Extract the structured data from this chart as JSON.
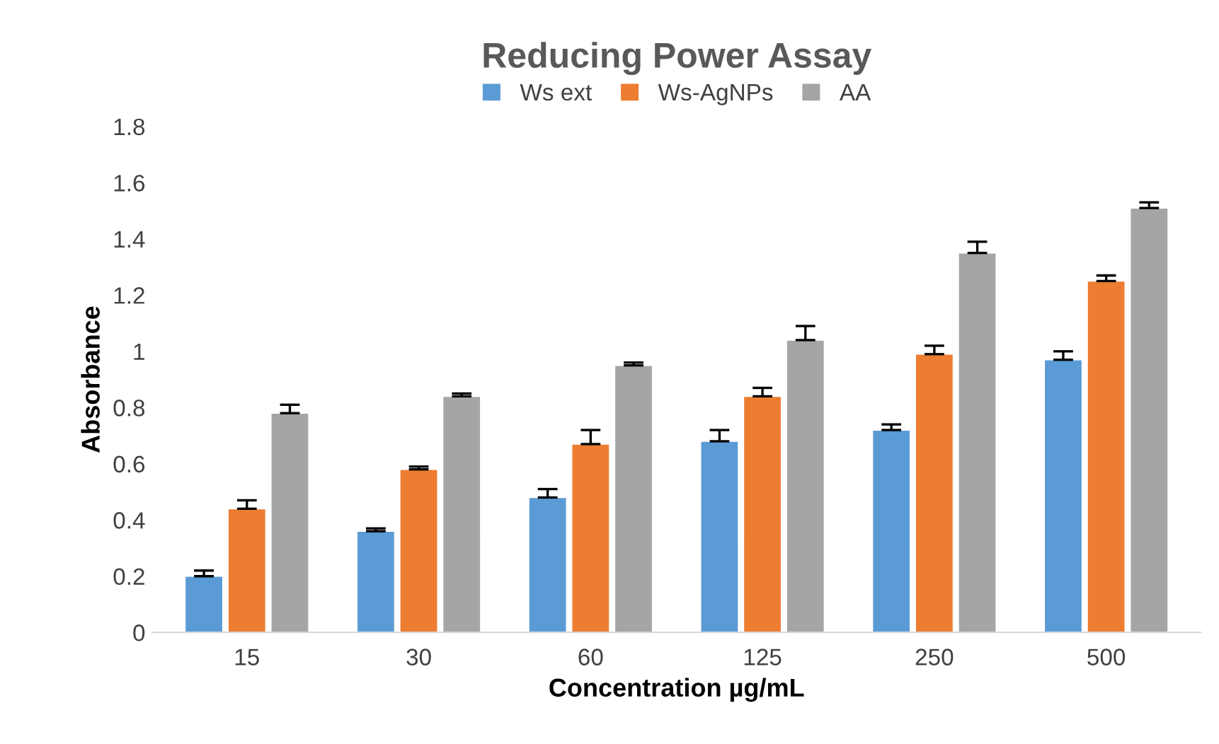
{
  "chart_data": {
    "type": "bar",
    "title": "Reducing Power Assay",
    "xlabel": "Concentration µg/mL",
    "ylabel": "Absorbance",
    "categories": [
      "15",
      "30",
      "60",
      "125",
      "250",
      "500"
    ],
    "series": [
      {
        "name": "Ws ext",
        "color": "#5b9bd5",
        "values": [
          0.2,
          0.36,
          0.48,
          0.68,
          0.72,
          0.97
        ],
        "errors": [
          [
            0.2,
            0.22
          ],
          [
            0.36,
            0.37
          ],
          [
            0.48,
            0.51
          ],
          [
            0.68,
            0.72
          ],
          [
            0.72,
            0.74
          ],
          [
            0.97,
            1.0
          ]
        ]
      },
      {
        "name": "Ws-AgNPs",
        "color": "#ed7d31",
        "values": [
          0.44,
          0.58,
          0.67,
          0.84,
          0.99,
          1.25
        ],
        "errors": [
          [
            0.44,
            0.47
          ],
          [
            0.58,
            0.59
          ],
          [
            0.67,
            0.72
          ],
          [
            0.84,
            0.87
          ],
          [
            0.99,
            1.02
          ],
          [
            1.25,
            1.27
          ]
        ]
      },
      {
        "name": "AA",
        "color": "#a5a5a5",
        "values": [
          0.78,
          0.84,
          0.95,
          1.04,
          1.35,
          1.51
        ],
        "errors": [
          [
            0.78,
            0.81
          ],
          [
            0.84,
            0.85
          ],
          [
            0.95,
            0.96
          ],
          [
            1.04,
            1.09
          ],
          [
            1.35,
            1.39
          ],
          [
            1.51,
            1.53
          ]
        ]
      }
    ],
    "ylim": [
      0,
      1.8
    ],
    "yticks": [
      0,
      0.2,
      0.4,
      0.6,
      0.8,
      1,
      1.2,
      1.4,
      1.6,
      1.8
    ],
    "grid": false,
    "legend": "top"
  }
}
